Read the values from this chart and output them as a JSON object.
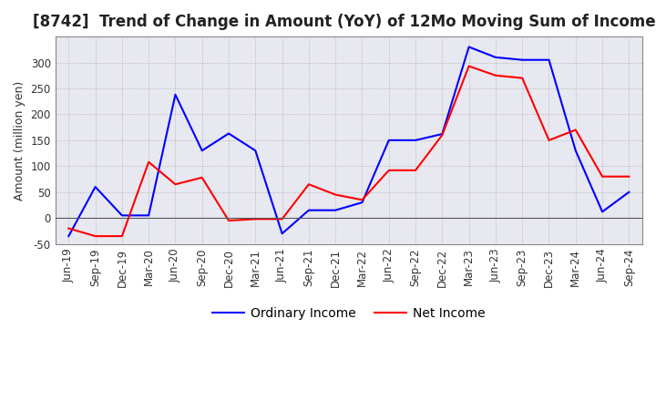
{
  "title": "[8742]  Trend of Change in Amount (YoY) of 12Mo Moving Sum of Incomes",
  "ylabel": "Amount (million yen)",
  "x_labels": [
    "Jun-19",
    "Sep-19",
    "Dec-19",
    "Mar-20",
    "Jun-20",
    "Sep-20",
    "Dec-20",
    "Mar-21",
    "Jun-21",
    "Sep-21",
    "Dec-21",
    "Mar-22",
    "Jun-22",
    "Sep-22",
    "Dec-22",
    "Mar-23",
    "Jun-23",
    "Sep-23",
    "Dec-23",
    "Mar-24",
    "Jun-24",
    "Sep-24"
  ],
  "ordinary_income": [
    -35,
    60,
    5,
    5,
    238,
    130,
    163,
    130,
    -30,
    15,
    15,
    30,
    150,
    150,
    162,
    330,
    310,
    305,
    305,
    130,
    12,
    50
  ],
  "net_income": [
    -20,
    -35,
    -35,
    108,
    65,
    78,
    -5,
    -2,
    -2,
    65,
    45,
    35,
    92,
    92,
    160,
    293,
    275,
    270,
    150,
    170,
    80,
    80
  ],
  "ordinary_color": "#0000FF",
  "net_color": "#FF0000",
  "background_color": "#FFFFFF",
  "plot_bg_color": "#E8E8F0",
  "grid_color": "#AAAAAA",
  "ylim": [
    -50,
    350
  ],
  "yticks": [
    -50,
    0,
    50,
    100,
    150,
    200,
    250,
    300
  ],
  "title_fontsize": 12,
  "label_fontsize": 9,
  "tick_fontsize": 8.5,
  "legend_fontsize": 10
}
